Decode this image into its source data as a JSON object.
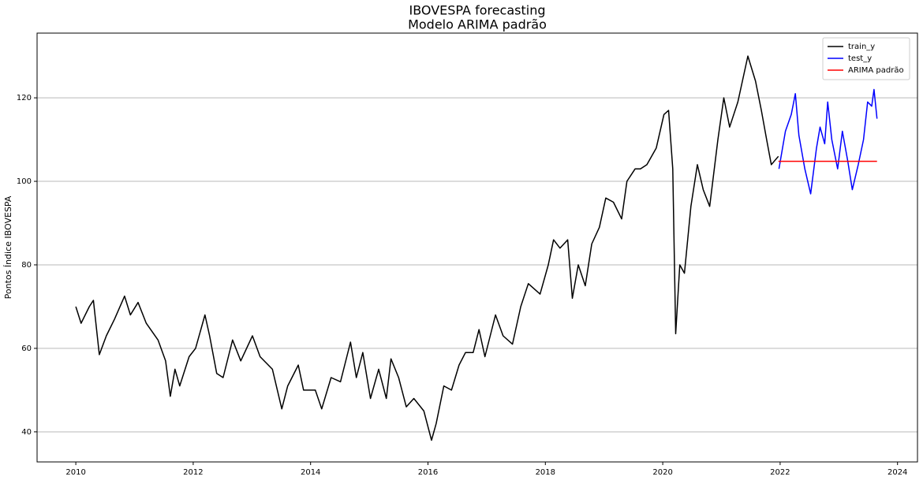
{
  "chart_data": {
    "type": "line",
    "title": "IBOVESPA forecasting",
    "subtitle": "Modelo ARIMA padrão",
    "y_label": "Pontos Índice IBOVESPA",
    "xlim": [
      2009.34,
      2024.34
    ],
    "xticks": [
      2010,
      2012,
      2014,
      2016,
      2018,
      2020,
      2022,
      2024
    ],
    "ylim": [
      32.8,
      135.5
    ],
    "yticks": [
      40,
      60,
      80,
      100,
      120
    ],
    "grid": "y",
    "legend": "upper right",
    "series": [
      {
        "name": "train_y",
        "color": "#000000",
        "x": [
          2010.0,
          2010.09,
          2010.23,
          2010.3,
          2010.4,
          2010.52,
          2010.66,
          2010.83,
          2010.93,
          2011.06,
          2011.2,
          2011.4,
          2011.53,
          2011.61,
          2011.69,
          2011.77,
          2011.93,
          2012.04,
          2012.2,
          2012.28,
          2012.4,
          2012.51,
          2012.67,
          2012.81,
          2013.01,
          2013.14,
          2013.35,
          2013.51,
          2013.61,
          2013.79,
          2013.88,
          2014.08,
          2014.19,
          2014.35,
          2014.51,
          2014.68,
          2014.78,
          2014.89,
          2015.02,
          2015.16,
          2015.29,
          2015.37,
          2015.5,
          2015.63,
          2015.76,
          2015.93,
          2016.06,
          2016.14,
          2016.27,
          2016.4,
          2016.53,
          2016.64,
          2016.77,
          2016.87,
          2016.97,
          2017.15,
          2017.28,
          2017.44,
          2017.58,
          2017.71,
          2017.91,
          2018.05,
          2018.14,
          2018.25,
          2018.38,
          2018.46,
          2018.56,
          2018.68,
          2018.79,
          2018.92,
          2019.03,
          2019.16,
          2019.3,
          2019.39,
          2019.53,
          2019.62,
          2019.73,
          2019.89,
          2020.02,
          2020.1,
          2020.17,
          2020.22,
          2020.29,
          2020.37,
          2020.48,
          2020.59,
          2020.69,
          2020.8,
          2020.94,
          2021.04,
          2021.14,
          2021.28,
          2021.45,
          2021.58,
          2021.68,
          2021.77,
          2021.85,
          2021.97
        ],
        "values": [
          70,
          66,
          70,
          71.5,
          58.5,
          63,
          67,
          72.5,
          68,
          71,
          66,
          62,
          57,
          48.5,
          55,
          51,
          58,
          60,
          68,
          63,
          54,
          53,
          62,
          57,
          63,
          58,
          55,
          45.5,
          51,
          56,
          50,
          50,
          45.5,
          53,
          52,
          61.5,
          53,
          59,
          48,
          55,
          48,
          57.5,
          53,
          46,
          48,
          45,
          38,
          42,
          51,
          50,
          56,
          59,
          59,
          64.5,
          58,
          68,
          63,
          61,
          70,
          75.5,
          73,
          80,
          86,
          84,
          86,
          72,
          80,
          75,
          85,
          89,
          96,
          95,
          91,
          100,
          103,
          103,
          104,
          108,
          116,
          117,
          103,
          63.5,
          80,
          78,
          94,
          104,
          98,
          94,
          110,
          120,
          113,
          119,
          130,
          124,
          117,
          110,
          104,
          106
        ]
      },
      {
        "name": "test_y",
        "color": "#0000ff",
        "x": [
          2021.98,
          2022.09,
          2022.19,
          2022.26,
          2022.32,
          2022.42,
          2022.52,
          2022.62,
          2022.68,
          2022.76,
          2022.81,
          2022.88,
          2022.98,
          2023.06,
          2023.15,
          2023.23,
          2023.33,
          2023.42,
          2023.49,
          2023.56,
          2023.6,
          2023.65
        ],
        "values": [
          103,
          112,
          116,
          121,
          111,
          103,
          97,
          108,
          113,
          109,
          119,
          110,
          103,
          112,
          105,
          98,
          104,
          110,
          119,
          118,
          122,
          115
        ]
      },
      {
        "name": "ARIMA padrão",
        "color": "#ff0000",
        "x": [
          2021.97,
          2023.65
        ],
        "values": [
          104.8,
          104.8
        ]
      }
    ]
  }
}
